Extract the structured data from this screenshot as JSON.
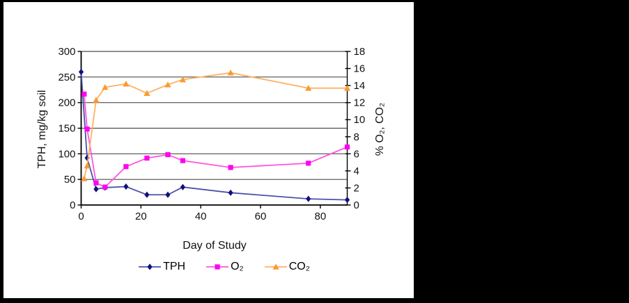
{
  "window": {
    "background_color": "#000000",
    "panel_background": "#FFFFFF",
    "panel_border_color": "#000000"
  },
  "chart_data": {
    "type": "line",
    "title": "",
    "xlabel": "Day of Study",
    "ylabel_left": "TPH, mg/kg soil",
    "ylabel_right": "% O₂, CO₂",
    "x_ticks": [
      0,
      20,
      40,
      60,
      80
    ],
    "left_ticks": [
      0,
      50,
      100,
      150,
      200,
      250,
      300
    ],
    "right_ticks": [
      0,
      2,
      4,
      6,
      8,
      10,
      12,
      14,
      16,
      18
    ],
    "xlim": [
      0,
      89
    ],
    "left_ylim": [
      0,
      300
    ],
    "right_ylim": [
      0,
      18
    ],
    "grid": "horizontal gridlines at every 50 units of the left axis",
    "gridline_color": "#4D4D4D",
    "axis_color": "#000000",
    "legend_position": "bottom",
    "series": [
      {
        "name": "TPH",
        "axis": "left",
        "marker": "diamond",
        "marker_color": "#10107E",
        "line_color": "#4A52AA",
        "x": [
          0,
          2,
          5,
          8,
          15,
          22,
          29,
          34,
          50,
          76,
          89
        ],
        "values": [
          260,
          92,
          31,
          34,
          36,
          20,
          20,
          35,
          24,
          12,
          10
        ]
      },
      {
        "name": "O₂",
        "axis": "right",
        "marker": "square",
        "marker_color": "#FF00F0",
        "line_color": "#FF55DD",
        "x": [
          1,
          2,
          5,
          8,
          15,
          22,
          29,
          34,
          50,
          76,
          89
        ],
        "values": [
          13.0,
          8.9,
          2.6,
          2.1,
          4.5,
          5.5,
          5.9,
          5.2,
          4.4,
          4.9,
          6.8
        ]
      },
      {
        "name": "CO₂",
        "axis": "right",
        "marker": "triangle",
        "marker_color": "#FC9A2D",
        "line_color": "#FDB263",
        "x": [
          1,
          2,
          5,
          8,
          15,
          22,
          29,
          34,
          50,
          76,
          89
        ],
        "values": [
          3.1,
          4.6,
          12.3,
          13.8,
          14.2,
          13.1,
          14.1,
          14.7,
          15.5,
          13.7,
          13.7
        ]
      }
    ]
  }
}
